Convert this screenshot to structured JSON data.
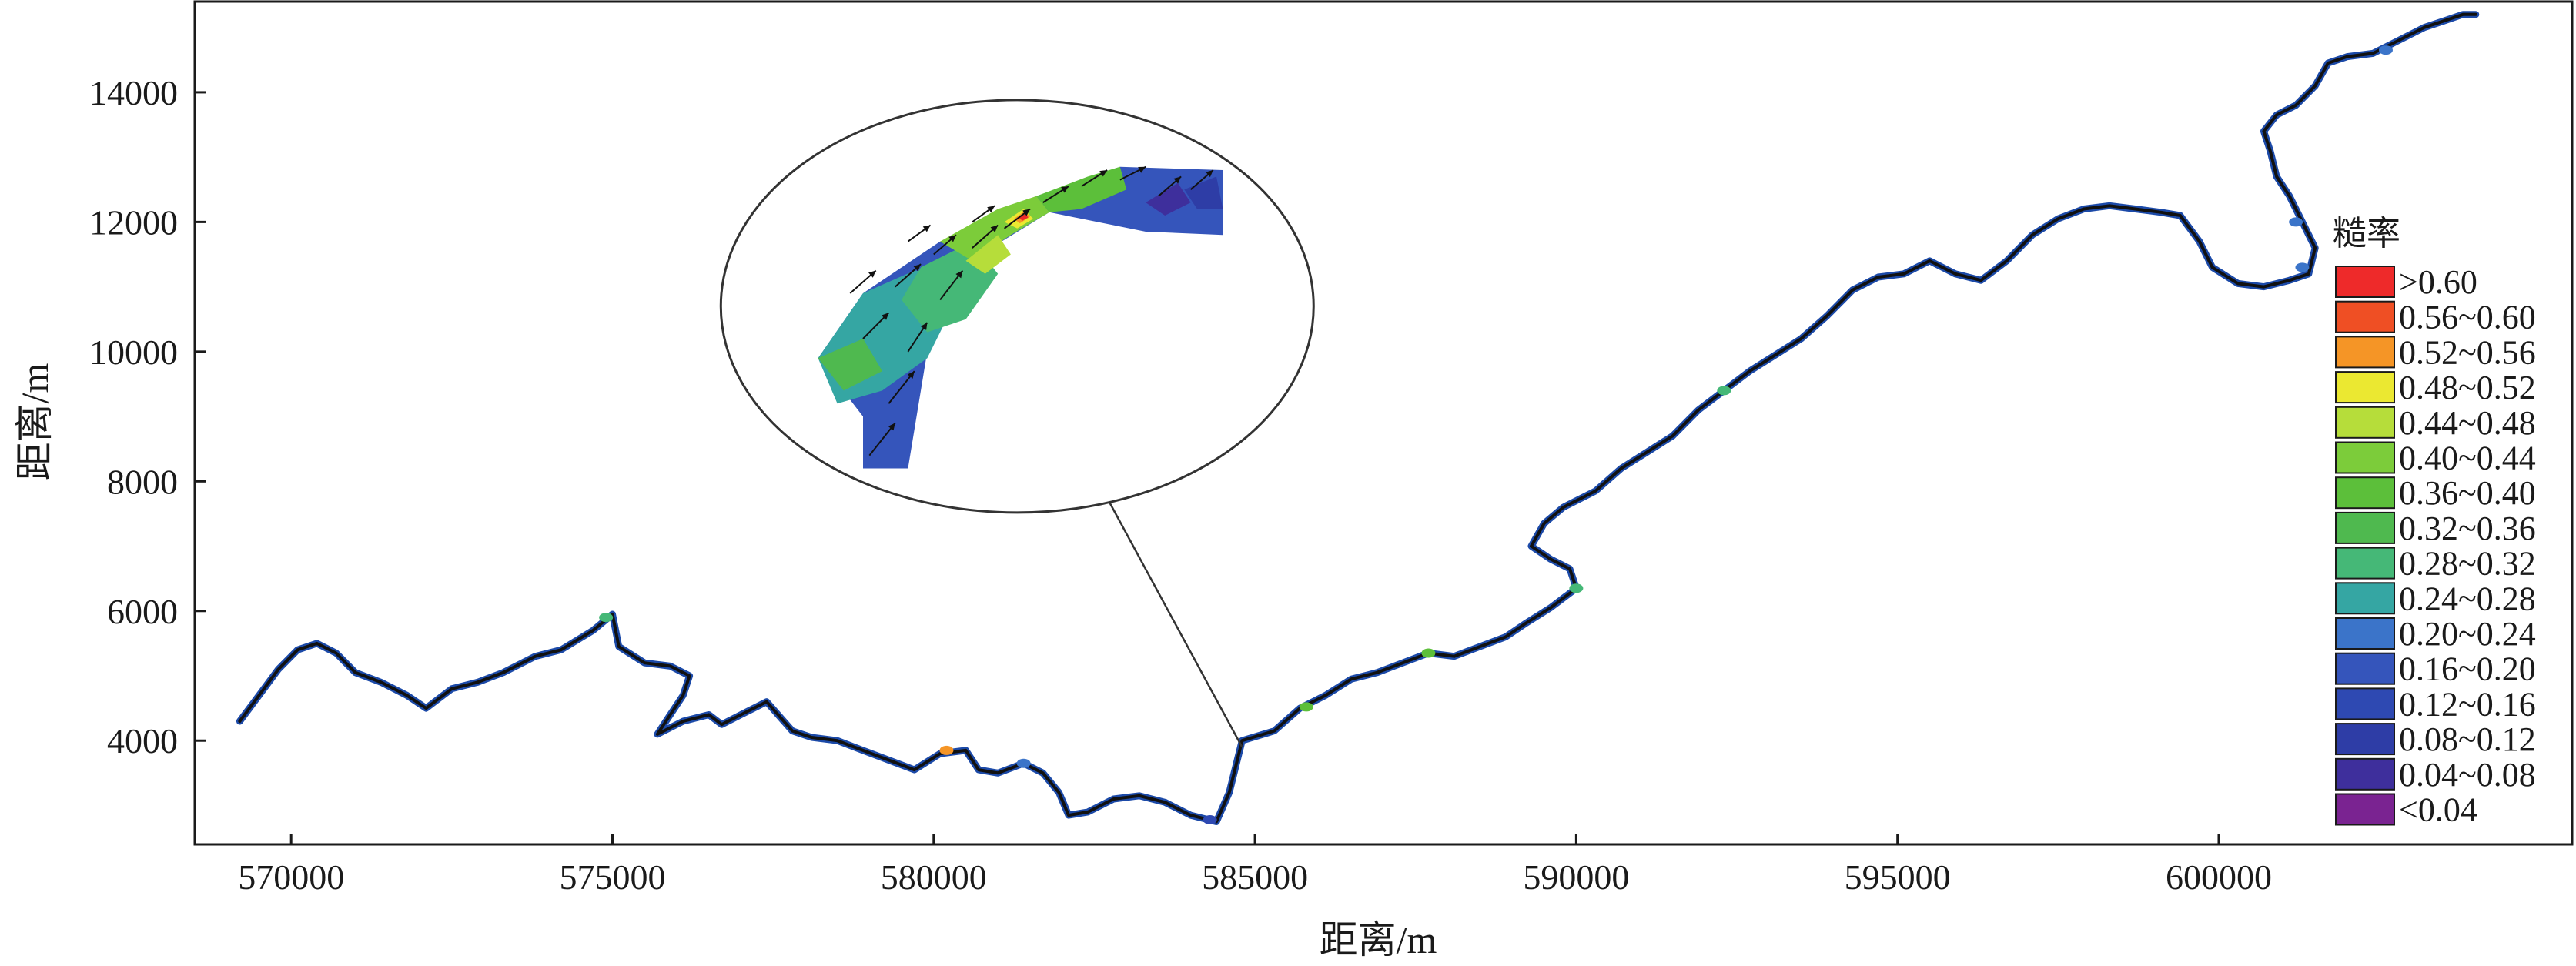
{
  "chart_data": {
    "type": "heatmap",
    "xlabel": "距离/m",
    "ylabel": "距离/m",
    "xlim": [
      568500,
      605500
    ],
    "ylim": [
      2400,
      15400
    ],
    "x_ticks": [
      "570000",
      "575000",
      "580000",
      "585000",
      "590000",
      "595000",
      "600000"
    ],
    "y_ticks": [
      "4000",
      "6000",
      "8000",
      "10000",
      "12000",
      "14000"
    ],
    "grid": false,
    "legend": {
      "title": "糙率",
      "placement": "right",
      "entries": [
        {
          "label": ">0.60",
          "color": "#ee2a2a"
        },
        {
          "label": "0.56~0.60",
          "color": "#ef4f24"
        },
        {
          "label": "0.52~0.56",
          "color": "#f59526"
        },
        {
          "label": "0.48~0.52",
          "color": "#ebe831"
        },
        {
          "label": "0.44~0.48",
          "color": "#b6dd3a"
        },
        {
          "label": "0.40~0.44",
          "color": "#7ccc3a"
        },
        {
          "label": "0.36~0.40",
          "color": "#5cbf3a"
        },
        {
          "label": "0.32~0.36",
          "color": "#4fb94f"
        },
        {
          "label": "0.28~0.32",
          "color": "#45b877"
        },
        {
          "label": "0.24~0.28",
          "color": "#35a6a3"
        },
        {
          "label": "0.20~0.24",
          "color": "#3b74c9"
        },
        {
          "label": "0.16~0.20",
          "color": "#3555bb"
        },
        {
          "label": "0.12~0.16",
          "color": "#2e49b2"
        },
        {
          "label": "0.08~0.12",
          "color": "#2e3da6"
        },
        {
          "label": "0.04~0.08",
          "color": "#3e2f9c"
        },
        {
          "label": "<0.04",
          "color": "#7a2391"
        }
      ]
    },
    "river_path": [
      [
        569200,
        4300
      ],
      [
        569500,
        4700
      ],
      [
        569800,
        5100
      ],
      [
        570100,
        5400
      ],
      [
        570400,
        5500
      ],
      [
        570700,
        5350
      ],
      [
        571000,
        5050
      ],
      [
        571400,
        4900
      ],
      [
        571800,
        4700
      ],
      [
        572100,
        4500
      ],
      [
        572500,
        4800
      ],
      [
        572900,
        4900
      ],
      [
        573300,
        5050
      ],
      [
        573800,
        5300
      ],
      [
        574200,
        5400
      ],
      [
        574700,
        5700
      ],
      [
        575000,
        5950
      ],
      [
        575100,
        5450
      ],
      [
        575500,
        5200
      ],
      [
        575900,
        5150
      ],
      [
        576200,
        5000
      ],
      [
        576100,
        4700
      ],
      [
        575900,
        4400
      ],
      [
        575700,
        4100
      ],
      [
        576100,
        4300
      ],
      [
        576500,
        4400
      ],
      [
        576700,
        4250
      ],
      [
        577000,
        4400
      ],
      [
        577400,
        4600
      ],
      [
        577800,
        4150
      ],
      [
        578100,
        4050
      ],
      [
        578500,
        4000
      ],
      [
        578900,
        3850
      ],
      [
        579300,
        3700
      ],
      [
        579700,
        3550
      ],
      [
        580100,
        3800
      ],
      [
        580500,
        3850
      ],
      [
        580700,
        3550
      ],
      [
        581000,
        3500
      ],
      [
        581400,
        3650
      ],
      [
        581700,
        3500
      ],
      [
        581950,
        3200
      ],
      [
        582100,
        2850
      ],
      [
        582400,
        2900
      ],
      [
        582800,
        3100
      ],
      [
        583200,
        3150
      ],
      [
        583600,
        3050
      ],
      [
        584000,
        2850
      ],
      [
        584400,
        2750
      ],
      [
        584600,
        3200
      ],
      [
        584800,
        4000
      ],
      [
        585300,
        4150
      ],
      [
        585700,
        4500
      ],
      [
        586100,
        4700
      ],
      [
        586500,
        4950
      ],
      [
        586900,
        5050
      ],
      [
        587300,
        5200
      ],
      [
        587700,
        5350
      ],
      [
        588100,
        5300
      ],
      [
        588500,
        5450
      ],
      [
        588900,
        5600
      ],
      [
        589200,
        5800
      ],
      [
        589600,
        6050
      ],
      [
        590000,
        6350
      ],
      [
        589900,
        6650
      ],
      [
        589600,
        6800
      ],
      [
        589300,
        7000
      ],
      [
        589500,
        7350
      ],
      [
        589800,
        7600
      ],
      [
        590300,
        7850
      ],
      [
        590700,
        8200
      ],
      [
        591100,
        8450
      ],
      [
        591500,
        8700
      ],
      [
        591900,
        9100
      ],
      [
        592300,
        9400
      ],
      [
        592700,
        9700
      ],
      [
        593100,
        9950
      ],
      [
        593500,
        10200
      ],
      [
        593900,
        10550
      ],
      [
        594300,
        10950
      ],
      [
        594700,
        11150
      ],
      [
        595100,
        11200
      ],
      [
        595500,
        11400
      ],
      [
        595900,
        11200
      ],
      [
        596300,
        11100
      ],
      [
        596700,
        11400
      ],
      [
        597100,
        11800
      ],
      [
        597500,
        12050
      ],
      [
        597900,
        12200
      ],
      [
        598300,
        12250
      ],
      [
        598700,
        12200
      ],
      [
        599100,
        12150
      ],
      [
        599400,
        12100
      ],
      [
        599700,
        11700
      ],
      [
        599900,
        11300
      ],
      [
        600300,
        11050
      ],
      [
        600700,
        11000
      ],
      [
        601100,
        11100
      ],
      [
        601400,
        11200
      ],
      [
        601500,
        11600
      ],
      [
        601300,
        12000
      ],
      [
        601100,
        12400
      ],
      [
        600900,
        12700
      ],
      [
        600800,
        13100
      ],
      [
        600700,
        13400
      ],
      [
        600900,
        13650
      ],
      [
        601200,
        13800
      ],
      [
        601500,
        14100
      ],
      [
        601700,
        14450
      ],
      [
        602000,
        14550
      ],
      [
        602400,
        14600
      ],
      [
        602800,
        14800
      ],
      [
        603200,
        15000
      ],
      [
        603500,
        15100
      ],
      [
        603800,
        15200
      ],
      [
        604000,
        15200
      ]
    ],
    "river_color_patches": [
      {
        "x": 574900,
        "y": 5900,
        "color": "#45b877"
      },
      {
        "x": 580200,
        "y": 3850,
        "color": "#f59526"
      },
      {
        "x": 581400,
        "y": 3650,
        "color": "#3b74c9"
      },
      {
        "x": 584300,
        "y": 2780,
        "color": "#2e49b2"
      },
      {
        "x": 585800,
        "y": 4520,
        "color": "#5cbf3a"
      },
      {
        "x": 587700,
        "y": 5350,
        "color": "#5cbf3a"
      },
      {
        "x": 590000,
        "y": 6350,
        "color": "#45b877"
      },
      {
        "x": 592300,
        "y": 9400,
        "color": "#45b877"
      },
      {
        "x": 601300,
        "y": 11300,
        "color": "#3b74c9"
      },
      {
        "x": 601200,
        "y": 12000,
        "color": "#3b74c9"
      },
      {
        "x": 602600,
        "y": 14650,
        "color": "#3b74c9"
      }
    ],
    "callout": {
      "anchor": [
        584800,
        3900
      ],
      "center": [
        581300,
        10700
      ]
    },
    "inset_contours": [
      {
        "color": "#3555bb",
        "points": [
          [
            578900,
            10900
          ],
          [
            580100,
            11700
          ],
          [
            581600,
            12400
          ],
          [
            582900,
            12850
          ],
          [
            584500,
            12800
          ],
          [
            584500,
            11800
          ],
          [
            583300,
            11850
          ],
          [
            581800,
            12150
          ],
          [
            580400,
            11300
          ],
          [
            579900,
            10000
          ],
          [
            579600,
            8200
          ],
          [
            578900,
            8200
          ],
          [
            578900,
            9000
          ],
          [
            578200,
            9900
          ]
        ]
      },
      {
        "color": "#35a6a3",
        "points": [
          [
            578900,
            10900
          ],
          [
            579700,
            11250
          ],
          [
            580400,
            11200
          ],
          [
            580200,
            10500
          ],
          [
            579900,
            9900
          ],
          [
            579200,
            9400
          ],
          [
            578500,
            9200
          ],
          [
            578200,
            9900
          ]
        ]
      },
      {
        "color": "#45b877",
        "points": [
          [
            579800,
            11300
          ],
          [
            580600,
            11700
          ],
          [
            581000,
            11200
          ],
          [
            580500,
            10500
          ],
          [
            579900,
            10300
          ],
          [
            579500,
            10800
          ]
        ]
      },
      {
        "color": "#4fb94f",
        "points": [
          [
            578200,
            9900
          ],
          [
            578900,
            10200
          ],
          [
            579200,
            9700
          ],
          [
            578600,
            9400
          ]
        ]
      },
      {
        "color": "#7ccc3a",
        "points": [
          [
            580100,
            11700
          ],
          [
            581000,
            12200
          ],
          [
            581600,
            12400
          ],
          [
            581800,
            12150
          ],
          [
            581200,
            11800
          ],
          [
            580600,
            11400
          ]
        ]
      },
      {
        "color": "#b6dd3a",
        "points": [
          [
            580500,
            11400
          ],
          [
            581000,
            11800
          ],
          [
            581200,
            11500
          ],
          [
            580800,
            11200
          ]
        ]
      },
      {
        "color": "#5cbf3a",
        "points": [
          [
            581600,
            12400
          ],
          [
            582400,
            12700
          ],
          [
            582900,
            12850
          ],
          [
            583000,
            12500
          ],
          [
            582300,
            12200
          ],
          [
            581800,
            12150
          ]
        ]
      },
      {
        "color": "#ebe831",
        "points": [
          [
            581100,
            12000
          ],
          [
            581400,
            12200
          ],
          [
            581550,
            12050
          ],
          [
            581300,
            11900
          ]
        ]
      },
      {
        "color": "#f59526",
        "points": [
          [
            581250,
            12050
          ],
          [
            581420,
            12170
          ],
          [
            581500,
            12080
          ],
          [
            581340,
            11980
          ]
        ]
      },
      {
        "color": "#ee2a2a",
        "points": [
          [
            581330,
            12060
          ],
          [
            581430,
            12130
          ],
          [
            581470,
            12070
          ],
          [
            581380,
            12020
          ]
        ]
      },
      {
        "color": "#3e2f9c",
        "points": [
          [
            583300,
            12300
          ],
          [
            583800,
            12600
          ],
          [
            584000,
            12300
          ],
          [
            583600,
            12100
          ]
        ]
      },
      {
        "color": "#2e3da6",
        "points": [
          [
            583900,
            12500
          ],
          [
            584400,
            12700
          ],
          [
            584500,
            12200
          ],
          [
            584100,
            12200
          ]
        ]
      }
    ],
    "inset_arrows": [
      {
        "x": 579000,
        "y": 8400,
        "u": 400,
        "v": 500
      },
      {
        "x": 579300,
        "y": 9200,
        "u": 400,
        "v": 500
      },
      {
        "x": 579600,
        "y": 10000,
        "u": 300,
        "v": 450
      },
      {
        "x": 578900,
        "y": 10200,
        "u": 400,
        "v": 400
      },
      {
        "x": 578700,
        "y": 10900,
        "u": 400,
        "v": 350
      },
      {
        "x": 579400,
        "y": 11000,
        "u": 400,
        "v": 350
      },
      {
        "x": 580100,
        "y": 10800,
        "u": 350,
        "v": 450
      },
      {
        "x": 580000,
        "y": 11500,
        "u": 350,
        "v": 300
      },
      {
        "x": 580600,
        "y": 11600,
        "u": 400,
        "v": 350
      },
      {
        "x": 581100,
        "y": 11900,
        "u": 400,
        "v": 300
      },
      {
        "x": 581700,
        "y": 12300,
        "u": 400,
        "v": 250
      },
      {
        "x": 582300,
        "y": 12550,
        "u": 400,
        "v": 250
      },
      {
        "x": 582900,
        "y": 12650,
        "u": 400,
        "v": 200
      },
      {
        "x": 583500,
        "y": 12400,
        "u": 350,
        "v": 300
      },
      {
        "x": 584000,
        "y": 12500,
        "u": 350,
        "v": 300
      },
      {
        "x": 580600,
        "y": 12000,
        "u": 350,
        "v": 250
      },
      {
        "x": 579600,
        "y": 11700,
        "u": 350,
        "v": 250
      }
    ]
  }
}
